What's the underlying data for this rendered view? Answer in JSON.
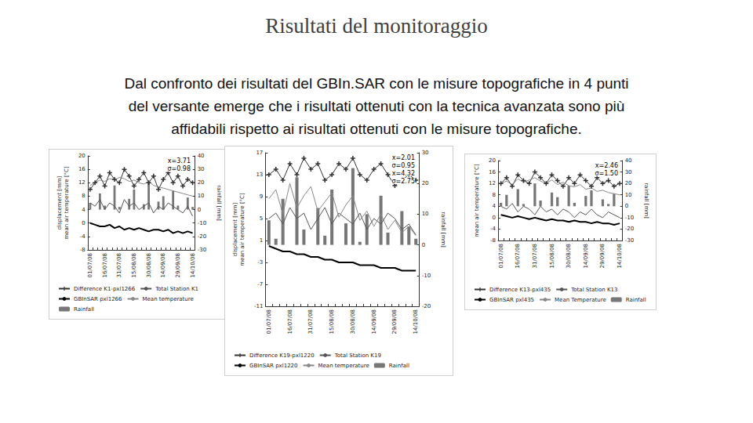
{
  "title": "Risultati del monitoraggio",
  "text": [
    "Dal confronto dei risultati del GBIn.SAR con le misure topografiche in 4 punti",
    "del versante emerge che i risultati ottenuti con la tecnica avanzata sono più",
    "affidabili rispetto ai risultati ottenuti con le misure topografiche."
  ],
  "chart_data": [
    {
      "type": "line",
      "ylabel": "displacement [mm]\nmean air temperature [°C]",
      "y2label": "rainfall [mm]",
      "categories": [
        "01/07/08",
        null,
        null,
        "16/07/08",
        null,
        null,
        "31/07/08",
        null,
        null,
        "15/08/08",
        null,
        null,
        "30/08/08",
        null,
        null,
        "14/09/08",
        null,
        null,
        "29/09/08",
        null,
        null,
        "14/10/08"
      ],
      "ylim": [
        -8,
        20
      ],
      "yticks": [
        -8,
        -4,
        0,
        4,
        8,
        12,
        16,
        20
      ],
      "y2lim": [
        -30,
        40
      ],
      "y2ticks": [
        -30,
        -20,
        -10,
        0,
        10,
        20,
        30,
        40
      ],
      "grid": false,
      "legend": "bottom",
      "annotations": [
        "x=3.71",
        "σ=0.98"
      ],
      "series": [
        {
          "name": "Difference K1-pxl1266",
          "type": "line",
          "color": "#333333",
          "marker": "plus",
          "line_style": "solid",
          "values": [
            10,
            12,
            14,
            11,
            15,
            13,
            12,
            16,
            14,
            11,
            13,
            15,
            12,
            14,
            10,
            13,
            15,
            12,
            14,
            11,
            13,
            12
          ]
        },
        {
          "name": "Total Station K1",
          "type": "line",
          "color": "#555555",
          "marker": "none",
          "line_style": "solid",
          "values": [
            6,
            5,
            7,
            4,
            6,
            5,
            3,
            7,
            5,
            6,
            4,
            5,
            6,
            3,
            5,
            4,
            6,
            5,
            4,
            3,
            5,
            2
          ]
        },
        {
          "name": "GBInSAR pxl1266",
          "type": "line",
          "color": "#000000",
          "marker": "none",
          "line_style": "solid",
          "values": [
            0,
            -0.5,
            -1,
            -1,
            -0.5,
            -1.5,
            -1,
            -2,
            -1.5,
            -2,
            -1.5,
            -2,
            -2.5,
            -2,
            -2,
            -2.5,
            -2,
            -3,
            -2.5,
            -3,
            -2.5,
            -3
          ]
        },
        {
          "name": "Mean temperature",
          "type": "line",
          "color": "#888888",
          "marker": "none",
          "line_style": "solid",
          "axis": "y2",
          "values": [
            18,
            20,
            22,
            21,
            23,
            22,
            24,
            23,
            21,
            22,
            20,
            19,
            21,
            18,
            17,
            16,
            15,
            14,
            13,
            12,
            11,
            10
          ]
        },
        {
          "name": "Rainfall",
          "type": "bar",
          "color": "#777777",
          "axis": "y2",
          "values": [
            5,
            0,
            12,
            3,
            0,
            18,
            2,
            0,
            8,
            15,
            0,
            4,
            20,
            0,
            6,
            10,
            0,
            14,
            3,
            0,
            9,
            2
          ]
        }
      ]
    },
    {
      "type": "line",
      "ylabel": "displacement [mm]\nmean air temperature [°C]",
      "y2label": "rainfall [mm]",
      "categories": [
        "01/07/08",
        null,
        null,
        "16/07/08",
        null,
        null,
        "31/07/08",
        null,
        null,
        "15/08/08",
        null,
        null,
        "30/08/08",
        null,
        null,
        "14/09/08",
        null,
        null,
        "29/09/08",
        null,
        null,
        "14/10/08"
      ],
      "ylim": [
        -11,
        17
      ],
      "yticks": [
        -11,
        -7,
        -3,
        1,
        5,
        9,
        13,
        17
      ],
      "y2lim": [
        -20,
        30
      ],
      "y2ticks": [
        -20,
        -10,
        0,
        10,
        20,
        30
      ],
      "grid": false,
      "legend": "bottom",
      "annotations": [
        "x=2.01",
        "σ=0.95",
        "x=4.32",
        "σ=2.75"
      ],
      "series": [
        {
          "name": "Difference K19-pxl1220",
          "type": "line",
          "color": "#333333",
          "marker": "plus",
          "line_style": "solid",
          "values": [
            13,
            14,
            12,
            15,
            13,
            16,
            14,
            15,
            12,
            13,
            15,
            14,
            16,
            13,
            12,
            14,
            15,
            13,
            11,
            12,
            13,
            12
          ]
        },
        {
          "name": "Total Station K19",
          "type": "line",
          "color": "#555555",
          "marker": "none",
          "line_style": "solid",
          "values": [
            5,
            6,
            4,
            7,
            5,
            6,
            3,
            5,
            7,
            4,
            6,
            5,
            4,
            6,
            3,
            5,
            4,
            6,
            5,
            3,
            4,
            2
          ]
        },
        {
          "name": "GBInSAR pxl1220",
          "type": "line",
          "color": "#000000",
          "marker": "none",
          "line_style": "solid",
          "values": [
            0,
            -0.5,
            -1,
            -1,
            -1.5,
            -1.5,
            -2,
            -2,
            -2.5,
            -2.5,
            -3,
            -3,
            -3,
            -3.5,
            -3.5,
            -3.5,
            -4,
            -4,
            -4,
            -4.5,
            -4.5,
            -4.5
          ]
        },
        {
          "name": "Mean temperature",
          "type": "line",
          "color": "#888888",
          "marker": "none",
          "line_style": "solid",
          "axis": "y2",
          "values": [
            15,
            18,
            10,
            20,
            12,
            16,
            19,
            11,
            14,
            17,
            9,
            13,
            16,
            8,
            11,
            6,
            10,
            5,
            8,
            4,
            6,
            3
          ]
        },
        {
          "name": "Rainfall",
          "type": "bar",
          "color": "#777777",
          "axis": "y2",
          "values": [
            8,
            2,
            15,
            0,
            22,
            5,
            0,
            12,
            3,
            18,
            0,
            7,
            25,
            1,
            10,
            0,
            16,
            4,
            0,
            11,
            6,
            2
          ]
        }
      ]
    },
    {
      "type": "line",
      "ylabel": "mean air temperature [°C]",
      "y2label": "rainfall [mm]",
      "categories": [
        "01/07/08",
        null,
        null,
        "16/07/08",
        null,
        null,
        "31/07/08",
        null,
        null,
        "15/08/08",
        null,
        null,
        "30/08/08",
        null,
        null,
        "14/09/08",
        null,
        null,
        "29/09/08",
        null,
        null,
        "14/10/08"
      ],
      "ylim": [
        -8,
        20
      ],
      "yticks": [
        -8,
        -4,
        0,
        4,
        8,
        12,
        16,
        20
      ],
      "y2lim": [
        -30,
        40
      ],
      "y2ticks": [
        -30,
        -20,
        -10,
        0,
        10,
        20,
        30,
        40
      ],
      "grid": false,
      "legend": "bottom",
      "annotations": [
        "x=2.46",
        "σ=1.50"
      ],
      "series": [
        {
          "name": "Difference K13-pxl435",
          "type": "line",
          "color": "#333333",
          "marker": "plus",
          "line_style": "solid",
          "values": [
            12,
            14,
            11,
            15,
            13,
            12,
            16,
            14,
            12,
            15,
            13,
            11,
            14,
            12,
            15,
            13,
            11,
            14,
            12,
            13,
            11,
            12
          ]
        },
        {
          "name": "Total Station K13",
          "type": "line",
          "color": "#555555",
          "marker": "none",
          "line_style": "solid",
          "values": [
            4,
            3,
            5,
            2,
            4,
            3,
            1,
            4,
            2,
            3,
            1,
            3,
            2,
            0,
            2,
            1,
            3,
            1,
            0,
            2,
            1,
            0
          ]
        },
        {
          "name": "GBInSAR pxl435",
          "type": "line",
          "color": "#000000",
          "marker": "none",
          "line_style": "solid",
          "values": [
            1,
            0.5,
            0,
            0.5,
            0,
            -0.5,
            0,
            -0.5,
            -1,
            -0.5,
            -1,
            -1,
            -1.5,
            -1,
            -1.5,
            -1.5,
            -2,
            -1.5,
            -2,
            -2,
            -2.5,
            -2
          ]
        },
        {
          "name": "Mean Temperature",
          "type": "line",
          "color": "#888888",
          "marker": "none",
          "line_style": "solid",
          "axis": "y2",
          "values": [
            20,
            22,
            19,
            24,
            21,
            23,
            25,
            22,
            20,
            23,
            19,
            21,
            18,
            17,
            19,
            15,
            16,
            13,
            14,
            12,
            11,
            10
          ]
        },
        {
          "name": "Rainfall",
          "type": "bar",
          "color": "#777777",
          "axis": "y2",
          "values": [
            3,
            10,
            0,
            15,
            2,
            0,
            20,
            5,
            0,
            12,
            8,
            0,
            18,
            3,
            0,
            9,
            14,
            0,
            6,
            2,
            11,
            0
          ]
        }
      ]
    }
  ]
}
